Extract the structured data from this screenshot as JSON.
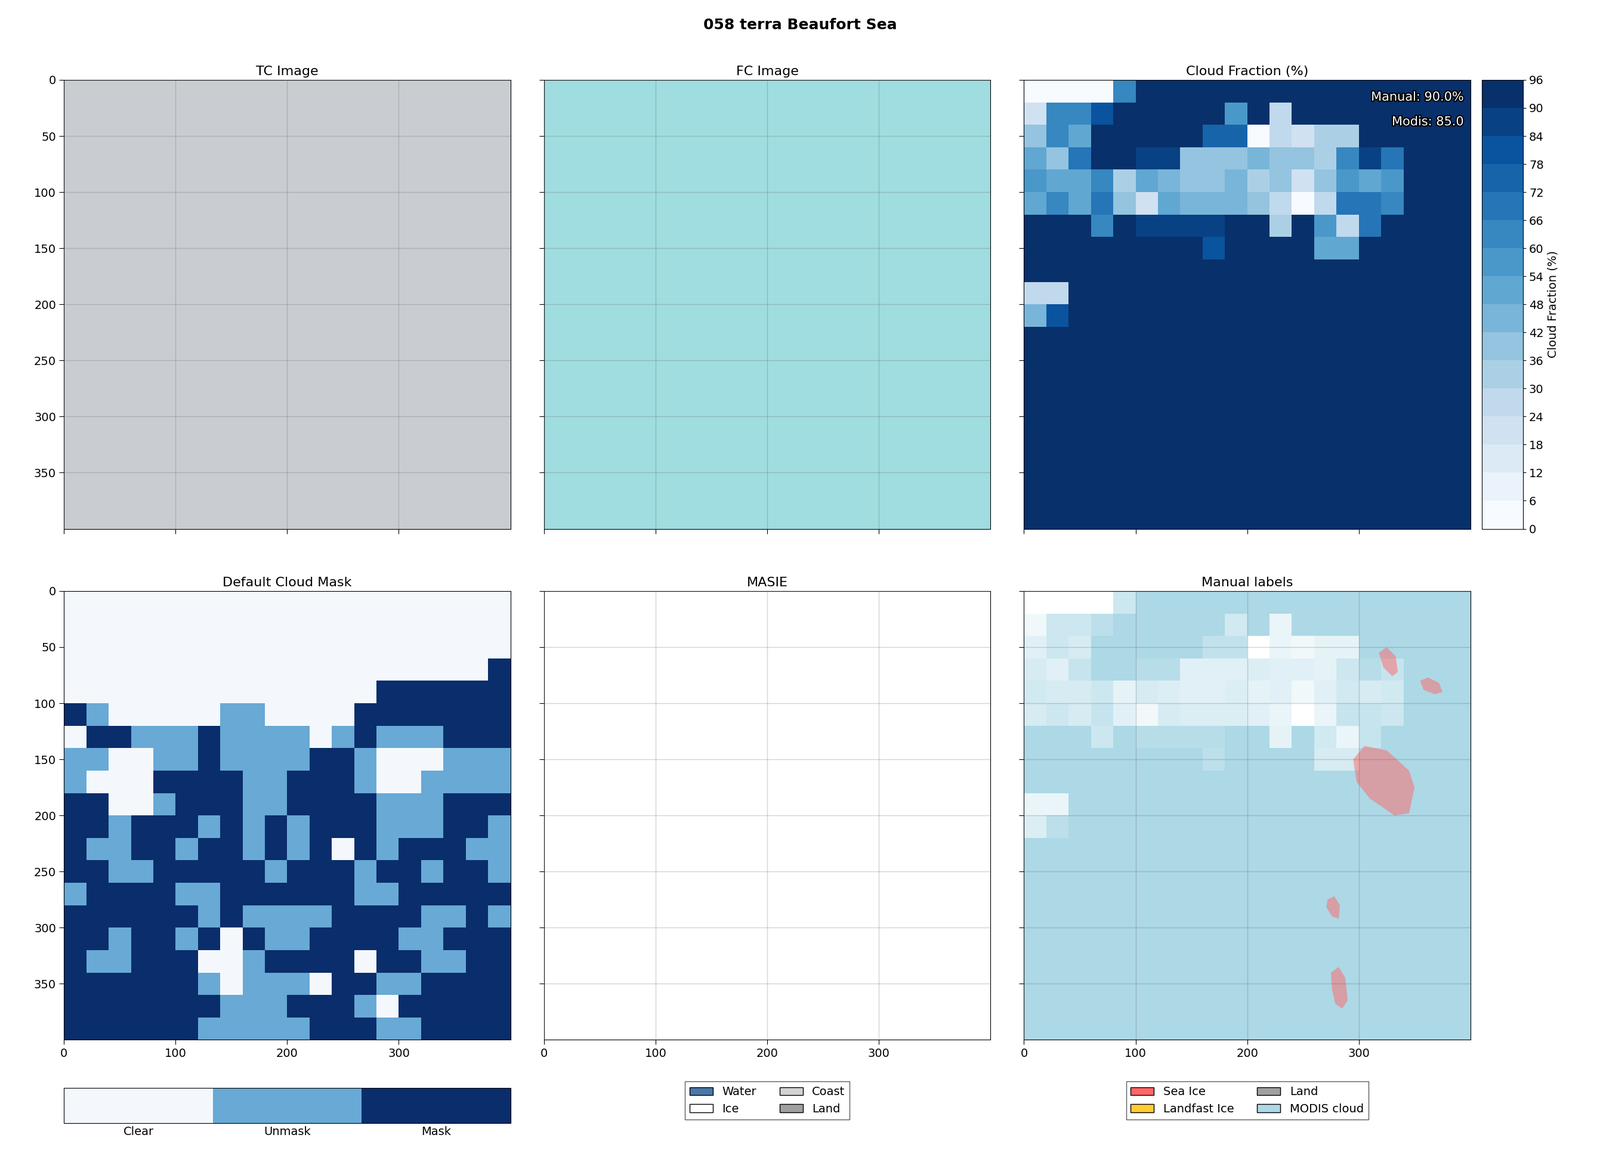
{
  "title": "058 terra Beaufort Sea",
  "chart_data": [
    {
      "type": "image",
      "title": "TC Image",
      "color": "#c9cdd2",
      "xlim": [
        0,
        400
      ],
      "ylim": [
        400,
        0
      ],
      "xticks": [
        0,
        100,
        200,
        300
      ],
      "yticks": [
        0,
        50,
        100,
        150,
        200,
        250,
        300,
        350
      ],
      "grid": true,
      "tick_labels": "y"
    },
    {
      "type": "image",
      "title": "FC Image",
      "color": "#9fdde0",
      "xlim": [
        0,
        400
      ],
      "ylim": [
        400,
        0
      ],
      "xticks": [
        0,
        100,
        200,
        300
      ],
      "yticks": [
        0,
        50,
        100,
        150,
        200,
        250,
        300,
        350
      ],
      "grid": true,
      "tick_labels": false
    },
    {
      "type": "heatmap",
      "title": "Cloud Fraction (%)",
      "xlim": [
        0,
        400
      ],
      "ylim": [
        400,
        0
      ],
      "xticks": [
        0,
        100,
        200,
        300
      ],
      "yticks": [
        0,
        50,
        100,
        150,
        200,
        250,
        300,
        350
      ],
      "grid": false,
      "tick_labels": false,
      "color_range": [
        0,
        96
      ],
      "color_ticks": [
        0,
        6,
        12,
        18,
        24,
        30,
        36,
        42,
        48,
        54,
        60,
        66,
        72,
        78,
        84,
        90,
        96
      ],
      "color_label": "Cloud Fraction (%)",
      "annotations": [
        "Manual: 90.0%",
        "Modis: 85.0"
      ],
      "cells": [
        [
          0,
          0,
          0,
          0,
          60,
          96,
          96,
          96,
          96,
          96,
          96,
          96,
          96,
          96,
          96,
          96,
          96,
          96,
          96,
          96
        ],
        [
          18,
          60,
          60,
          78,
          96,
          96,
          96,
          96,
          96,
          54,
          96,
          24,
          96,
          96,
          96,
          96,
          96,
          96,
          96,
          96
        ],
        [
          36,
          60,
          48,
          96,
          96,
          96,
          96,
          96,
          72,
          72,
          0,
          24,
          18,
          30,
          30,
          96,
          96,
          96,
          96,
          96
        ],
        [
          48,
          36,
          66,
          96,
          96,
          84,
          84,
          36,
          36,
          36,
          42,
          36,
          36,
          30,
          60,
          84,
          66,
          96,
          96,
          96
        ],
        [
          54,
          48,
          48,
          60,
          30,
          48,
          42,
          36,
          36,
          42,
          30,
          36,
          18,
          36,
          54,
          48,
          54,
          96,
          96,
          96
        ],
        [
          48,
          60,
          48,
          66,
          36,
          18,
          48,
          42,
          42,
          42,
          36,
          24,
          0,
          24,
          66,
          66,
          60,
          96,
          96,
          96
        ],
        [
          96,
          96,
          96,
          60,
          96,
          84,
          84,
          84,
          84,
          96,
          96,
          30,
          96,
          54,
          24,
          66,
          96,
          96,
          96,
          96
        ],
        [
          96,
          96,
          96,
          96,
          96,
          96,
          96,
          96,
          78,
          96,
          96,
          96,
          96,
          48,
          48,
          96,
          96,
          96,
          96,
          96
        ],
        [
          96,
          96,
          96,
          96,
          96,
          96,
          96,
          96,
          96,
          96,
          96,
          96,
          96,
          96,
          96,
          96,
          96,
          96,
          96,
          96
        ],
        [
          24,
          24,
          96,
          96,
          96,
          96,
          96,
          96,
          96,
          96,
          96,
          96,
          96,
          96,
          96,
          96,
          96,
          96,
          96,
          96
        ],
        [
          42,
          78,
          96,
          96,
          96,
          96,
          96,
          96,
          96,
          96,
          96,
          96,
          96,
          96,
          96,
          96,
          96,
          96,
          96,
          96
        ],
        [
          96,
          96,
          96,
          96,
          96,
          96,
          96,
          96,
          96,
          96,
          96,
          96,
          96,
          96,
          96,
          96,
          96,
          96,
          96,
          96
        ],
        [
          96,
          96,
          96,
          96,
          96,
          96,
          96,
          96,
          96,
          96,
          96,
          96,
          96,
          96,
          96,
          96,
          96,
          96,
          96,
          96
        ],
        [
          96,
          96,
          96,
          96,
          96,
          96,
          96,
          96,
          96,
          96,
          96,
          96,
          96,
          96,
          96,
          96,
          96,
          96,
          96,
          96
        ],
        [
          96,
          96,
          96,
          96,
          96,
          96,
          96,
          96,
          96,
          96,
          96,
          96,
          96,
          96,
          96,
          96,
          96,
          96,
          96,
          96
        ],
        [
          96,
          96,
          96,
          96,
          96,
          96,
          96,
          96,
          96,
          96,
          96,
          96,
          96,
          96,
          96,
          96,
          96,
          96,
          96,
          96
        ],
        [
          96,
          96,
          96,
          96,
          96,
          96,
          96,
          96,
          96,
          96,
          96,
          96,
          96,
          96,
          96,
          96,
          96,
          96,
          96,
          96
        ],
        [
          96,
          96,
          96,
          96,
          96,
          96,
          96,
          96,
          96,
          96,
          96,
          96,
          96,
          96,
          96,
          96,
          96,
          96,
          96,
          96
        ],
        [
          96,
          96,
          96,
          96,
          96,
          96,
          96,
          96,
          96,
          96,
          96,
          96,
          96,
          96,
          96,
          96,
          96,
          96,
          96,
          96
        ],
        [
          96,
          96,
          96,
          96,
          96,
          96,
          96,
          96,
          96,
          96,
          96,
          96,
          96,
          96,
          96,
          96,
          96,
          96,
          96,
          96
        ]
      ]
    },
    {
      "type": "class_map",
      "title": "Default Cloud Mask",
      "xlim": [
        0,
        400
      ],
      "ylim": [
        400,
        0
      ],
      "xticks": [
        0,
        100,
        200,
        300
      ],
      "yticks": [
        0,
        50,
        100,
        150,
        200,
        250,
        300,
        350
      ],
      "grid": false,
      "tick_labels": true,
      "classes": [
        "Clear",
        "Unmask",
        "Mask"
      ],
      "colors": [
        "#f4f8fd",
        "#68a9d5",
        "#0a2d6b"
      ],
      "cells": [
        [
          0,
          0,
          0,
          0,
          0,
          0,
          0,
          0,
          0,
          0,
          0,
          0,
          0,
          0,
          0,
          0,
          0,
          0,
          0,
          0
        ],
        [
          0,
          0,
          0,
          0,
          0,
          0,
          0,
          0,
          0,
          0,
          0,
          0,
          0,
          0,
          0,
          0,
          0,
          0,
          0,
          0
        ],
        [
          0,
          0,
          0,
          0,
          0,
          0,
          0,
          0,
          0,
          0,
          0,
          0,
          0,
          0,
          0,
          0,
          0,
          0,
          0,
          0
        ],
        [
          0,
          0,
          0,
          0,
          0,
          0,
          0,
          0,
          0,
          0,
          0,
          0,
          0,
          0,
          0,
          0,
          0,
          0,
          0,
          2
        ],
        [
          0,
          0,
          0,
          0,
          0,
          0,
          0,
          0,
          0,
          0,
          0,
          0,
          0,
          0,
          2,
          2,
          2,
          2,
          2,
          2
        ],
        [
          2,
          1,
          0,
          0,
          0,
          0,
          0,
          1,
          1,
          0,
          0,
          0,
          0,
          2,
          2,
          2,
          2,
          2,
          2,
          2
        ],
        [
          0,
          2,
          2,
          1,
          1,
          1,
          2,
          1,
          1,
          1,
          1,
          0,
          1,
          2,
          1,
          1,
          1,
          2,
          2,
          2
        ],
        [
          1,
          1,
          0,
          0,
          1,
          1,
          2,
          1,
          1,
          1,
          1,
          2,
          2,
          1,
          0,
          0,
          0,
          1,
          1,
          1
        ],
        [
          1,
          0,
          0,
          0,
          2,
          2,
          2,
          2,
          1,
          1,
          2,
          2,
          2,
          1,
          0,
          0,
          1,
          1,
          1,
          1
        ],
        [
          2,
          2,
          0,
          0,
          1,
          2,
          2,
          2,
          1,
          1,
          2,
          2,
          2,
          2,
          1,
          1,
          1,
          2,
          2,
          2
        ],
        [
          2,
          2,
          1,
          2,
          2,
          2,
          1,
          2,
          1,
          2,
          1,
          2,
          2,
          2,
          1,
          1,
          1,
          2,
          2,
          1
        ],
        [
          2,
          1,
          1,
          2,
          2,
          1,
          2,
          2,
          1,
          2,
          1,
          2,
          0,
          2,
          1,
          2,
          2,
          2,
          1,
          1
        ],
        [
          2,
          2,
          1,
          1,
          2,
          2,
          2,
          2,
          2,
          1,
          2,
          2,
          2,
          1,
          2,
          2,
          1,
          2,
          2,
          1
        ],
        [
          1,
          2,
          2,
          2,
          2,
          1,
          1,
          2,
          2,
          2,
          2,
          2,
          2,
          1,
          1,
          2,
          2,
          2,
          2,
          2
        ],
        [
          2,
          2,
          2,
          2,
          2,
          2,
          1,
          2,
          1,
          1,
          1,
          1,
          2,
          2,
          2,
          2,
          1,
          1,
          2,
          1
        ],
        [
          2,
          2,
          1,
          2,
          2,
          1,
          2,
          0,
          2,
          1,
          1,
          2,
          2,
          2,
          2,
          1,
          1,
          2,
          2,
          2
        ],
        [
          2,
          1,
          1,
          2,
          2,
          2,
          0,
          0,
          1,
          2,
          2,
          2,
          2,
          0,
          2,
          2,
          1,
          1,
          2,
          2
        ],
        [
          2,
          2,
          2,
          2,
          2,
          2,
          1,
          0,
          1,
          1,
          1,
          0,
          2,
          2,
          1,
          1,
          2,
          2,
          2,
          2
        ],
        [
          2,
          2,
          2,
          2,
          2,
          2,
          2,
          1,
          1,
          1,
          2,
          2,
          2,
          1,
          0,
          2,
          2,
          2,
          2,
          2
        ],
        [
          2,
          2,
          2,
          2,
          2,
          2,
          1,
          1,
          1,
          1,
          1,
          2,
          2,
          2,
          1,
          1,
          2,
          2,
          2,
          2
        ]
      ]
    },
    {
      "type": "map",
      "title": "MASIE",
      "xlim": [
        0,
        400
      ],
      "ylim": [
        400,
        0
      ],
      "xticks": [
        0,
        100,
        200,
        300
      ],
      "yticks": [
        0,
        50,
        100,
        150,
        200,
        250,
        300,
        350
      ],
      "grid": true,
      "tick_labels": "x",
      "legend": "upper center",
      "series": [
        {
          "name": "Water",
          "color": "#4a77a8"
        },
        {
          "name": "Ice",
          "color": "#ffffff"
        },
        {
          "name": "Coast",
          "color": "#d3d3d3"
        },
        {
          "name": "Land",
          "color": "#a0a0a0"
        }
      ]
    },
    {
      "type": "labels",
      "title": "Manual labels",
      "xlim": [
        0,
        400
      ],
      "ylim": [
        400,
        0
      ],
      "xticks": [
        0,
        100,
        200,
        300
      ],
      "yticks": [
        0,
        50,
        100,
        150,
        200,
        250,
        300,
        350
      ],
      "grid": true,
      "tick_labels": "x",
      "legend": "upper center",
      "series": [
        {
          "name": "Sea Ice",
          "color": "#ff6666"
        },
        {
          "name": "Landfast Ice",
          "color": "#ffcc33"
        },
        {
          "name": "Land",
          "color": "#a0a0a0"
        },
        {
          "name": "MODIS cloud",
          "color": "#add8e6"
        }
      ],
      "sea_ice_polygons": [
        [
          [
            318,
            55
          ],
          [
            325,
            50
          ],
          [
            333,
            58
          ],
          [
            335,
            72
          ],
          [
            330,
            76
          ],
          [
            322,
            68
          ]
        ],
        [
          [
            355,
            80
          ],
          [
            362,
            77
          ],
          [
            372,
            82
          ],
          [
            375,
            90
          ],
          [
            368,
            92
          ],
          [
            358,
            88
          ]
        ],
        [
          [
            295,
            150
          ],
          [
            305,
            138
          ],
          [
            325,
            142
          ],
          [
            345,
            160
          ],
          [
            350,
            175
          ],
          [
            345,
            198
          ],
          [
            332,
            200
          ],
          [
            310,
            185
          ],
          [
            298,
            170
          ]
        ],
        [
          [
            272,
            275
          ],
          [
            278,
            272
          ],
          [
            283,
            280
          ],
          [
            282,
            292
          ],
          [
            276,
            290
          ],
          [
            271,
            282
          ]
        ],
        [
          [
            275,
            340
          ],
          [
            282,
            335
          ],
          [
            288,
            345
          ],
          [
            290,
            365
          ],
          [
            285,
            372
          ],
          [
            279,
            368
          ],
          [
            276,
            355
          ]
        ]
      ]
    }
  ]
}
